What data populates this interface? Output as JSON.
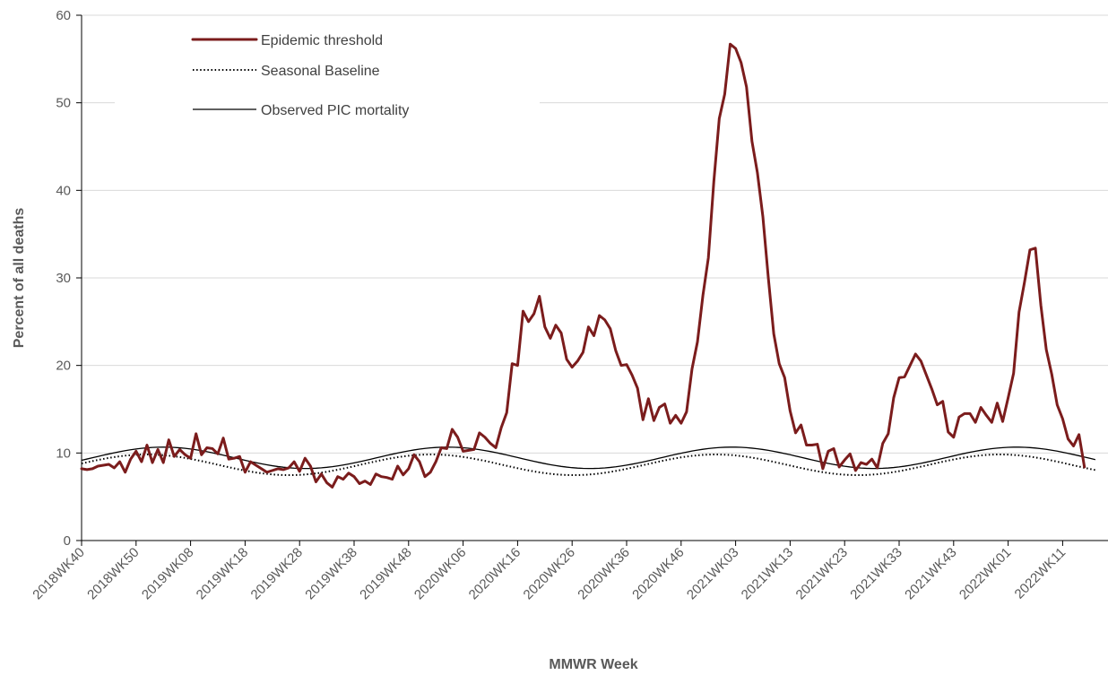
{
  "chart_data": {
    "type": "line",
    "title": "",
    "xlabel": "MMWR Week",
    "ylabel": "Percent of all deaths",
    "ylim": [
      0,
      60
    ],
    "yticks": [
      0,
      10,
      20,
      30,
      40,
      50,
      60
    ],
    "grid": "horizontal",
    "legend_position": "top-left",
    "x_tick_labels": [
      "2018WK40",
      "2018WK50",
      "2019WK08",
      "2019WK18",
      "2019WK28",
      "2019WK38",
      "2019WK48",
      "2020WK06",
      "2020WK16",
      "2020WK26",
      "2020WK36",
      "2020WK46",
      "2021WK03",
      "2021WK13",
      "2021WK23",
      "2021WK33",
      "2021WK43",
      "2022WK01",
      "2022WK11"
    ],
    "x_tick_spacing_weeks": 10,
    "num_weeks": 187,
    "series": [
      {
        "name": "Epidemic threshold",
        "color": "#7B1C1C",
        "style": "thick",
        "values": [
          8.2,
          8.1,
          8.2,
          8.5,
          8.6,
          8.7,
          8.3,
          9.0,
          7.8,
          9.3,
          10.2,
          9.0,
          10.9,
          8.9,
          10.4,
          8.9,
          11.5,
          9.6,
          10.4,
          9.8,
          9.4,
          12.2,
          9.8,
          10.6,
          10.5,
          9.9,
          11.7,
          9.3,
          9.4,
          9.6,
          7.8,
          9.0,
          8.6,
          8.2,
          7.8,
          8.0,
          8.2,
          8.1,
          8.3,
          9.0,
          7.9,
          9.4,
          8.5,
          6.7,
          7.6,
          6.6,
          6.1,
          7.3,
          7.0,
          7.7,
          7.3,
          6.5,
          6.8,
          6.4,
          7.6,
          7.3,
          7.2,
          7.0,
          8.5,
          7.5,
          8.2,
          9.8,
          9.0,
          7.3,
          7.8,
          9.0,
          10.6,
          10.5,
          12.7,
          11.8,
          10.2,
          10.3,
          10.4,
          12.3,
          11.8,
          11.1,
          10.6,
          12.9,
          14.6,
          20.2,
          20.0,
          26.2,
          25.0,
          25.9,
          27.9,
          24.4,
          23.1,
          24.6,
          23.7,
          20.7,
          19.8,
          20.5,
          21.5,
          24.4,
          23.4,
          25.7,
          25.2,
          24.2,
          21.7,
          20.0,
          20.1,
          18.9,
          17.4,
          13.8,
          16.2,
          13.7,
          15.2,
          15.6,
          13.4,
          14.3,
          13.4,
          14.7,
          19.6,
          22.7,
          28.0,
          32.3,
          41.0,
          48.2,
          51.0,
          56.7,
          56.2,
          54.6,
          51.8,
          45.6,
          42.0,
          37.0,
          30.0,
          23.6,
          20.2,
          18.6,
          14.8,
          12.3,
          13.2,
          10.9,
          10.9,
          11.0,
          8.2,
          10.2,
          10.5,
          8.4,
          9.2,
          9.9,
          8.0,
          8.9,
          8.7,
          9.3,
          8.3,
          11.1,
          12.2,
          16.3,
          18.6,
          18.7,
          20.0,
          21.3,
          20.5,
          18.9,
          17.3,
          15.5,
          15.9,
          12.4,
          11.8,
          14.1,
          14.5,
          14.5,
          13.5,
          15.2,
          14.3,
          13.5,
          15.7,
          13.6,
          16.3,
          19.1,
          26.1,
          29.5,
          33.2,
          33.4,
          26.9,
          21.8,
          19.0,
          15.5,
          13.9,
          11.6,
          10.8,
          12.1,
          8.4
        ]
      },
      {
        "name": "Seasonal Baseline",
        "color": "#000000",
        "style": "dotted",
        "curve": {
          "mean": 8.65,
          "amplitude": 1.18,
          "period_weeks": 52.18,
          "peak_week": 12
        }
      },
      {
        "name": "Observed PIC mortality",
        "color": "#000000",
        "style": "thin",
        "curve": {
          "mean": 9.45,
          "amplitude": 1.22,
          "period_weeks": 52.18,
          "peak_week": 15
        }
      }
    ]
  }
}
